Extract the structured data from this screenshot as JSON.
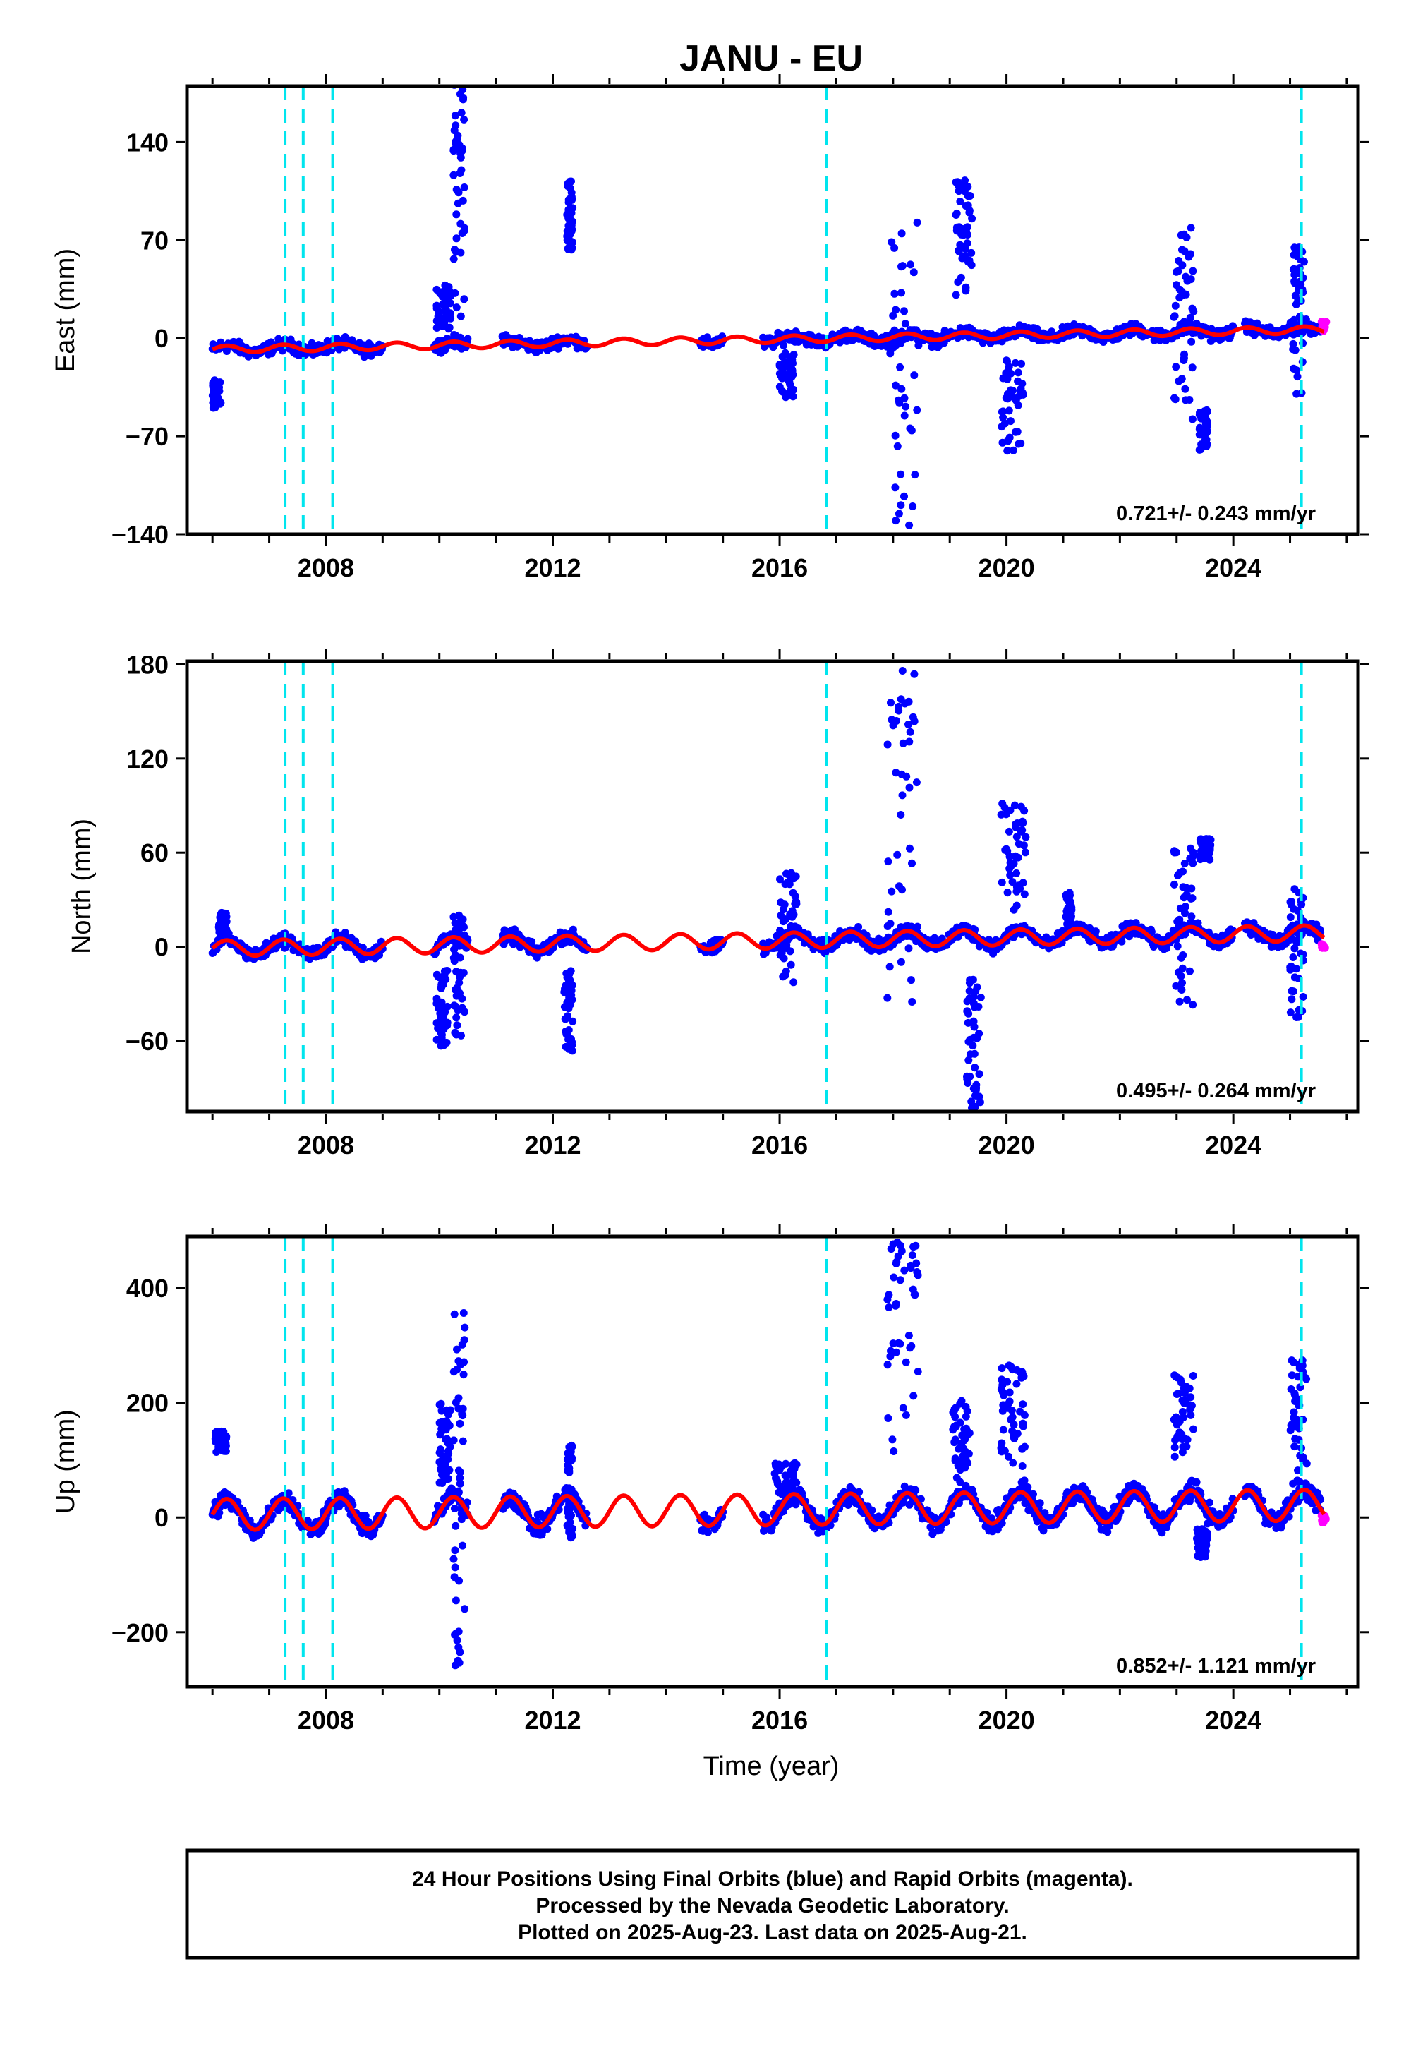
{
  "title": "JANU - EU",
  "colors": {
    "final_points": "#0000ff",
    "rapid_points": "#ff00ff",
    "model": "#ff0000",
    "steps": "#00e5ee"
  },
  "x_axis": {
    "label": "Time (year)",
    "range": [
      2005.55,
      2026.2
    ],
    "ticks": [
      2008,
      2012,
      2016,
      2020,
      2024
    ],
    "minor_tick_step": 1
  },
  "step_epochs": [
    2007.28,
    2007.6,
    2008.12,
    2016.83,
    2025.2
  ],
  "note_lines": [
    "24 Hour Positions Using Final Orbits (blue) and Rapid Orbits (magenta).",
    "Processed by the Nevada Geodetic Laboratory.",
    "Plotted on 2025-Aug-23. Last data on 2025-Aug-21."
  ],
  "chart_data": [
    {
      "type": "scatter",
      "component": "east",
      "ylabel": "East (mm)",
      "ylim": [
        -140,
        180
      ],
      "yticks": [
        -140,
        -70,
        0,
        70,
        140
      ],
      "rate_label": "0.721+/- 0.243 mm/yr",
      "velocity_mm_per_yr": 0.721,
      "annual_amplitude_mm": 2.5,
      "offset_at_start_mm": -8,
      "gaps": [
        [
          2009.0,
          2009.9
        ],
        [
          2010.5,
          2011.1
        ],
        [
          2012.6,
          2014.6
        ],
        [
          2015.0,
          2015.7
        ],
        [
          2024.0,
          2024.2
        ]
      ],
      "noise_mm": 3,
      "excursions": [
        {
          "x": [
            2006.0,
            2006.15
          ],
          "y": [
            -50,
            -30
          ]
        },
        {
          "x": [
            2009.95,
            2010.2
          ],
          "y": [
            5,
            38
          ]
        },
        {
          "x": [
            2010.25,
            2010.45
          ],
          "y": [
            10,
            185
          ]
        },
        {
          "x": [
            2012.25,
            2012.35
          ],
          "y": [
            60,
            112
          ]
        },
        {
          "x": [
            2016.0,
            2016.25
          ],
          "y": [
            -45,
            -10
          ]
        },
        {
          "x": [
            2017.95,
            2018.45
          ],
          "y": [
            -138,
            85
          ]
        },
        {
          "x": [
            2019.1,
            2019.4
          ],
          "y": [
            30,
            118
          ]
        },
        {
          "x": [
            2019.9,
            2020.3
          ],
          "y": [
            -85,
            -15
          ]
        },
        {
          "x": [
            2022.95,
            2023.3
          ],
          "y": [
            -60,
            80
          ]
        },
        {
          "x": [
            2023.4,
            2023.55
          ],
          "y": [
            -80,
            -50
          ]
        },
        {
          "x": [
            2025.05,
            2025.25
          ],
          "y": [
            -45,
            65
          ]
        }
      ],
      "rapid_points": {
        "x": [
          2025.55,
          2025.64
        ],
        "y": [
          5,
          12
        ]
      }
    },
    {
      "type": "scatter",
      "component": "north",
      "ylabel": "North (mm)",
      "ylim": [
        -105,
        182
      ],
      "yticks": [
        -60,
        0,
        60,
        120,
        180
      ],
      "rate_label": "0.495+/- 0.264 mm/yr",
      "velocity_mm_per_yr": 0.495,
      "annual_amplitude_mm": 5,
      "offset_at_start_mm": -1,
      "gaps": [
        [
          2009.0,
          2009.9
        ],
        [
          2010.5,
          2011.1
        ],
        [
          2012.6,
          2014.6
        ],
        [
          2015.0,
          2015.7
        ],
        [
          2024.0,
          2024.2
        ]
      ],
      "noise_mm": 3,
      "excursions": [
        {
          "x": [
            2006.1,
            2006.25
          ],
          "y": [
            5,
            22
          ]
        },
        {
          "x": [
            2009.95,
            2010.15
          ],
          "y": [
            -65,
            -15
          ]
        },
        {
          "x": [
            2010.25,
            2010.45
          ],
          "y": [
            -60,
            20
          ]
        },
        {
          "x": [
            2012.2,
            2012.35
          ],
          "y": [
            -68,
            -15
          ]
        },
        {
          "x": [
            2016.0,
            2016.3
          ],
          "y": [
            -25,
            50
          ]
        },
        {
          "x": [
            2017.9,
            2018.45
          ],
          "y": [
            -45,
            180
          ]
        },
        {
          "x": [
            2019.3,
            2019.55
          ],
          "y": [
            -103,
            -20
          ]
        },
        {
          "x": [
            2019.9,
            2020.35
          ],
          "y": [
            20,
            92
          ]
        },
        {
          "x": [
            2021.05,
            2021.15
          ],
          "y": [
            5,
            35
          ]
        },
        {
          "x": [
            2022.95,
            2023.3
          ],
          "y": [
            -38,
            68
          ]
        },
        {
          "x": [
            2023.4,
            2023.6
          ],
          "y": [
            55,
            70
          ]
        },
        {
          "x": [
            2025.0,
            2025.25
          ],
          "y": [
            -58,
            40
          ]
        }
      ],
      "rapid_points": {
        "x": [
          2025.55,
          2025.64
        ],
        "y": [
          -3,
          2
        ]
      }
    },
    {
      "type": "scatter",
      "component": "up",
      "ylabel": "Up (mm)",
      "ylim": [
        -295,
        490
      ],
      "yticks": [
        -200,
        0,
        200,
        400
      ],
      "rate_label": "0.852+/- 1.121 mm/yr",
      "velocity_mm_per_yr": 0.852,
      "annual_amplitude_mm": 27,
      "offset_at_start_mm": 5,
      "gaps": [
        [
          2009.0,
          2009.9
        ],
        [
          2010.5,
          2011.1
        ],
        [
          2012.6,
          2014.6
        ],
        [
          2015.0,
          2015.7
        ],
        [
          2024.0,
          2024.2
        ]
      ],
      "noise_mm": 12,
      "excursions": [
        {
          "x": [
            2006.05,
            2006.25
          ],
          "y": [
            110,
            150
          ]
        },
        {
          "x": [
            2010.0,
            2010.2
          ],
          "y": [
            40,
            200
          ]
        },
        {
          "x": [
            2010.25,
            2010.45
          ],
          "y": [
            -285,
            360
          ]
        },
        {
          "x": [
            2012.25,
            2012.35
          ],
          "y": [
            -50,
            130
          ]
        },
        {
          "x": [
            2015.9,
            2016.3
          ],
          "y": [
            40,
            95
          ]
        },
        {
          "x": [
            2017.9,
            2018.45
          ],
          "y": [
            100,
            480
          ]
        },
        {
          "x": [
            2019.05,
            2019.35
          ],
          "y": [
            60,
            205
          ]
        },
        {
          "x": [
            2019.9,
            2020.35
          ],
          "y": [
            80,
            265
          ]
        },
        {
          "x": [
            2022.95,
            2023.3
          ],
          "y": [
            100,
            250
          ]
        },
        {
          "x": [
            2023.35,
            2023.55
          ],
          "y": [
            -70,
            -20
          ]
        },
        {
          "x": [
            2025.0,
            2025.3
          ],
          "y": [
            30,
            280
          ]
        }
      ],
      "rapid_points": {
        "x": [
          2025.55,
          2025.64
        ],
        "y": [
          -10,
          5
        ]
      }
    }
  ]
}
